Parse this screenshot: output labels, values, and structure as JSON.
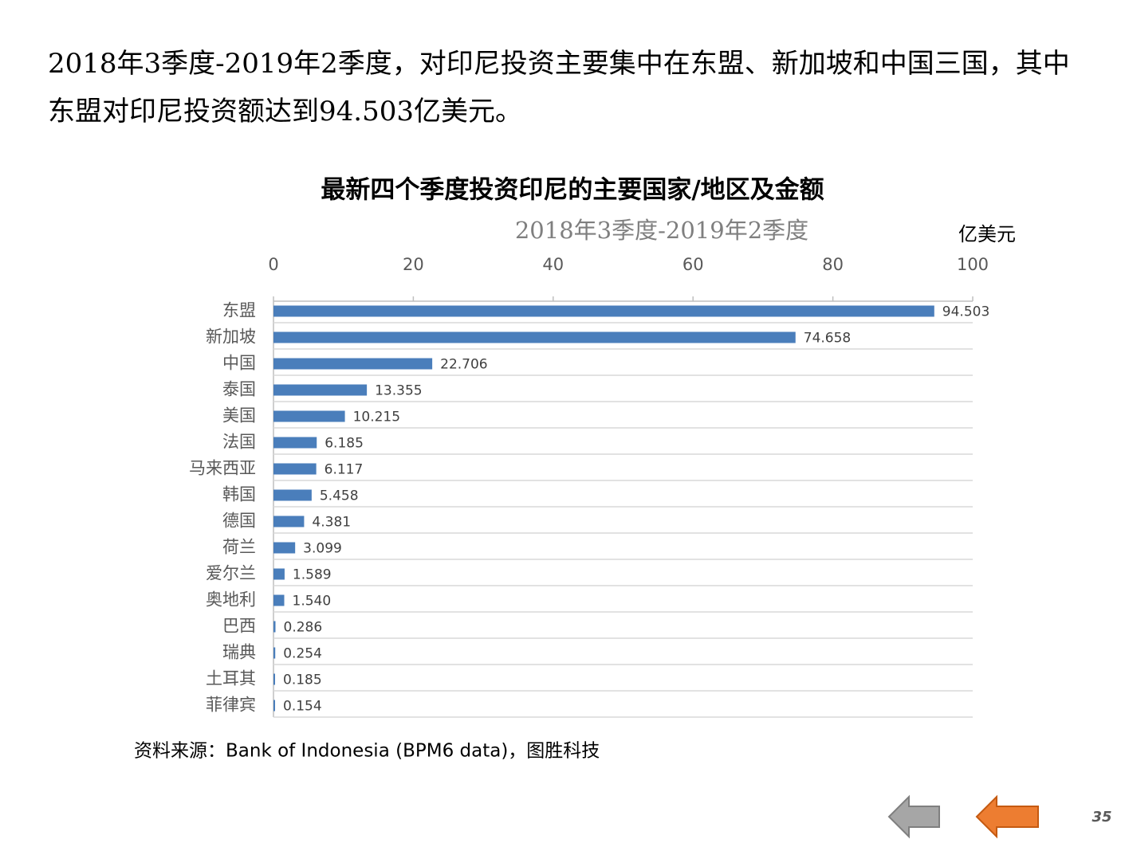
{
  "heading": "2018年3季度-2019年2季度，对印尼投资主要集中在东盟、新加坡和中国三国，其中东盟对印尼投资额达到94.503亿美元。",
  "chart_data": {
    "type": "bar",
    "orientation": "horizontal",
    "title": "最新四个季度投资印尼的主要国家/地区及金额",
    "subtitle": "2018年3季度-2019年2季度",
    "unit_label": "亿美元",
    "categories": [
      "东盟",
      "新加坡",
      "中国",
      "泰国",
      "美国",
      "法国",
      "马来西亚",
      "韩国",
      "德国",
      "荷兰",
      "爱尔兰",
      "奥地利",
      "巴西",
      "瑞典",
      "土耳其",
      "菲律宾"
    ],
    "values": [
      94.503,
      74.658,
      22.706,
      13.355,
      10.215,
      6.185,
      6.117,
      5.458,
      4.381,
      3.099,
      1.589,
      1.54,
      0.286,
      0.254,
      0.185,
      0.154
    ],
    "value_labels": [
      "94.503",
      "74.658",
      "22.706",
      "13.355",
      "10.215",
      "6.185",
      "6.117",
      "5.458",
      "4.381",
      "3.099",
      "1.589",
      "1.540",
      "0.286",
      "0.254",
      "0.185",
      "0.154"
    ],
    "color": "#4a7ebb",
    "xlim": [
      0,
      100
    ],
    "xticks": [
      0,
      20,
      40,
      60,
      80,
      100
    ]
  },
  "source": "资料来源：Bank of Indonesia (BPM6 data)，图胜科技",
  "page_number": "35"
}
